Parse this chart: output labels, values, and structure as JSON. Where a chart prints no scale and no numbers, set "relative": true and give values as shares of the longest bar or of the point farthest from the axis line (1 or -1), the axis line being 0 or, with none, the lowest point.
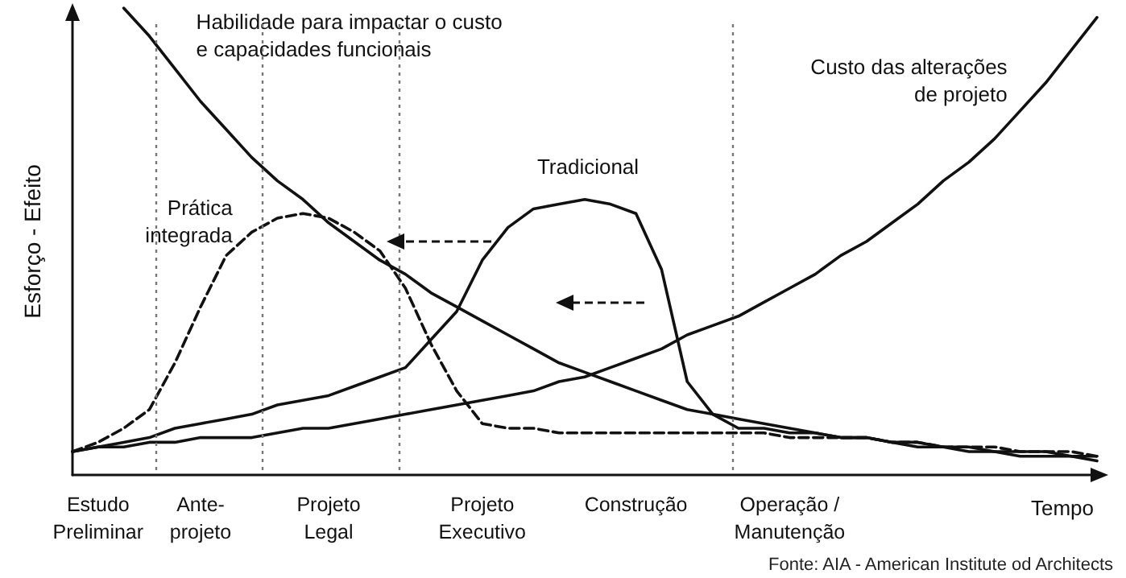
{
  "chart_data": {
    "type": "line",
    "relative": true,
    "xlabel": "Tempo",
    "ylabel": "Esforço - Efeito",
    "legend": false,
    "grid": false,
    "marker": "none",
    "categories": [
      null,
      "Estudo\nPreliminar",
      null,
      null,
      null,
      "Ante-\nprojeto",
      null,
      null,
      null,
      null,
      "Projeto\nLegal",
      null,
      null,
      null,
      null,
      null,
      "Projeto\nExecutivo",
      null,
      null,
      null,
      null,
      null,
      "Construção",
      null,
      null,
      null,
      null,
      null,
      "Operação /\nManutenção",
      null,
      null,
      null,
      null,
      null,
      null,
      null,
      null,
      null,
      null,
      null,
      null
    ],
    "series": [
      {
        "name": "Habilidade para impactar o custo\ne capacidades funcionais",
        "color": "#111111",
        "line_style": "solid",
        "values": [
          null,
          null,
          1.0,
          0.94,
          0.87,
          0.8,
          0.74,
          0.68,
          0.63,
          0.59,
          0.54,
          0.5,
          0.46,
          0.43,
          0.39,
          0.36,
          0.33,
          0.3,
          0.27,
          0.24,
          0.22,
          0.2,
          0.18,
          0.16,
          0.14,
          0.13,
          0.12,
          0.11,
          0.1,
          0.09,
          0.08,
          0.08,
          0.07,
          0.06,
          0.06,
          0.05,
          0.05,
          0.04,
          0.04,
          0.04,
          0.03
        ]
      },
      {
        "name": "Custo das alterações\nde projeto",
        "color": "#111111",
        "line_style": "solid",
        "values": [
          0.05,
          0.06,
          0.06,
          0.07,
          0.07,
          0.08,
          0.08,
          0.08,
          0.09,
          0.1,
          0.1,
          0.11,
          0.12,
          0.13,
          0.14,
          0.15,
          0.16,
          0.17,
          0.18,
          0.2,
          0.21,
          0.23,
          0.25,
          0.27,
          0.3,
          0.32,
          0.34,
          0.37,
          0.4,
          0.43,
          0.47,
          0.5,
          0.54,
          0.58,
          0.63,
          0.67,
          0.72,
          0.78,
          0.84,
          0.91,
          0.98
        ]
      },
      {
        "name": "Tradicional",
        "color": "#111111",
        "line_style": "solid",
        "values": [
          0.05,
          0.06,
          0.07,
          0.08,
          0.1,
          0.11,
          0.12,
          0.13,
          0.15,
          0.16,
          0.17,
          0.19,
          0.21,
          0.23,
          0.29,
          0.35,
          0.46,
          0.53,
          0.57,
          0.58,
          0.59,
          0.58,
          0.56,
          0.44,
          0.2,
          0.13,
          0.1,
          0.1,
          0.09,
          0.09,
          0.08,
          0.08,
          0.07,
          0.07,
          0.06,
          0.06,
          0.05,
          0.05,
          0.05,
          0.04,
          0.04
        ]
      },
      {
        "name": "Prática\nintegrada",
        "color": "#111111",
        "line_style": "dashed",
        "values": [
          0.05,
          0.07,
          0.1,
          0.14,
          0.24,
          0.36,
          0.47,
          0.52,
          0.55,
          0.56,
          0.55,
          0.52,
          0.48,
          0.4,
          0.28,
          0.18,
          0.11,
          0.1,
          0.1,
          0.09,
          0.09,
          0.09,
          0.09,
          0.09,
          0.09,
          0.09,
          0.09,
          0.09,
          0.08,
          0.08,
          0.08,
          0.08,
          0.07,
          0.07,
          0.06,
          0.06,
          0.06,
          0.05,
          0.05,
          0.05,
          0.04
        ]
      }
    ],
    "annotations": [
      "Fonte: AIA - American Institute od Architects"
    ]
  }
}
